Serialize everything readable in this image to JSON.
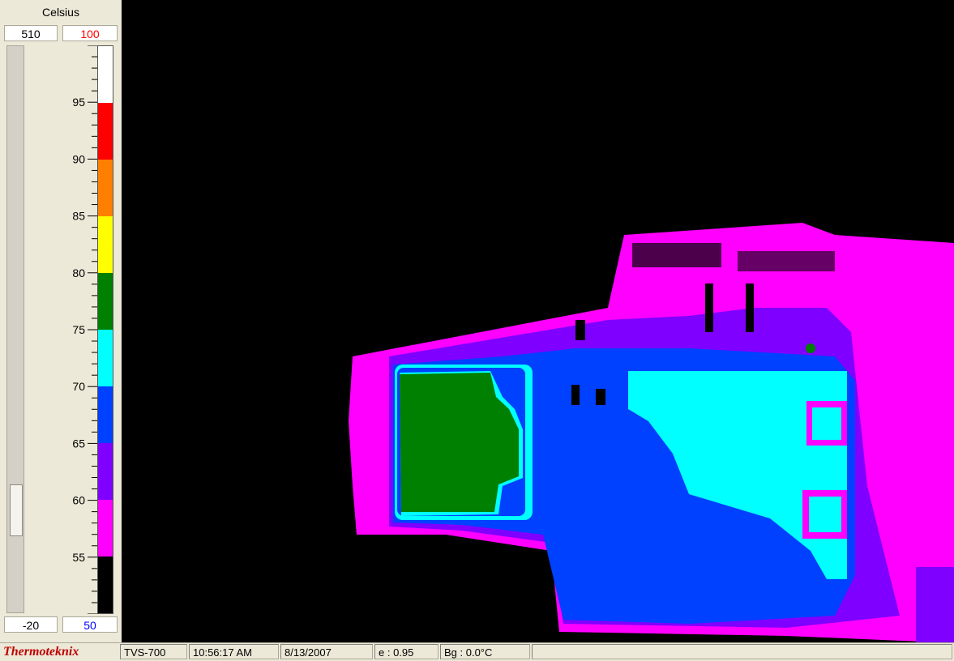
{
  "scale_panel": {
    "unit": "Celsius",
    "span_max": "510",
    "max_value": "100",
    "span_min": "-20",
    "min_value": "50",
    "tick_labels": [
      "95",
      "90",
      "85",
      "80",
      "75",
      "70",
      "65",
      "60",
      "55"
    ],
    "palette": [
      "#ffffff",
      "#ff0000",
      "#ff8000",
      "#ffff00",
      "#008000",
      "#00ffff",
      "#0040ff",
      "#8000ff",
      "#ff00ff",
      "#000000"
    ],
    "max_color": "#ff0000",
    "min_color": "#0000ff"
  },
  "thermal_image": {
    "palette_names": [
      "black",
      "magenta",
      "violet",
      "blue",
      "cyan",
      "green",
      "yellow"
    ]
  },
  "status_bar": {
    "brand": "Thermoteknix",
    "camera": "TVS-700",
    "time": "10:56:17 AM",
    "date": "8/13/2007",
    "emissivity": "e : 0.95",
    "background": "Bg : 0.0°C"
  }
}
